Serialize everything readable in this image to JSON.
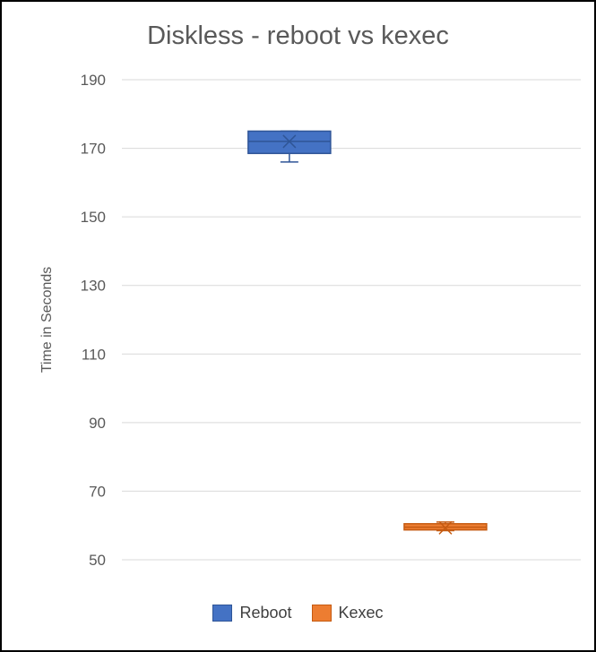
{
  "chart_data": {
    "type": "box",
    "title": "Diskless - reboot vs kexec",
    "xlabel": "",
    "ylabel": "Time in Seconds",
    "ylim": [
      50,
      190
    ],
    "yticks": [
      50,
      70,
      90,
      110,
      130,
      150,
      170,
      190
    ],
    "grid": true,
    "legend_position": "bottom",
    "series": [
      {
        "name": "Reboot",
        "color": "#4472C4",
        "stroke": "#2F5597",
        "min": 166,
        "q1": 168.5,
        "median": 172,
        "q3": 175,
        "max": 175,
        "mean": 172
      },
      {
        "name": "Kexec",
        "color": "#ED7D31",
        "stroke": "#C55A11",
        "min": 58.5,
        "q1": 58.7,
        "median": 59.5,
        "q3": 60.5,
        "max": 61,
        "mean": 59.3
      }
    ]
  }
}
